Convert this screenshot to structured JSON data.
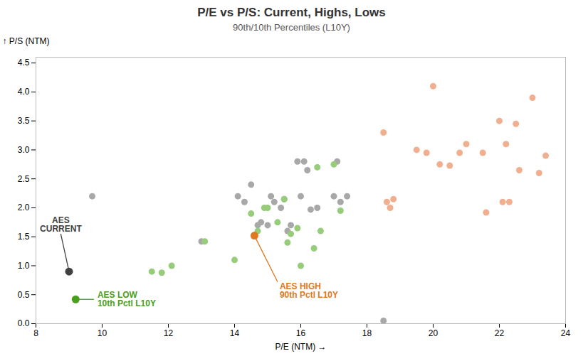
{
  "chart_data": {
    "type": "scatter",
    "title": "P/E vs P/S: Current, Highs, Lows",
    "subtitle": "90th/10th Percentiles (L10Y)",
    "xlabel": "P/E (NTM)",
    "ylabel": "P/S (NTM)",
    "xlim": [
      8,
      24
    ],
    "ylim": [
      0,
      4.6
    ],
    "xticks": [
      8,
      10,
      12,
      14,
      16,
      18,
      20,
      22,
      24
    ],
    "yticks": [
      {
        "value": 0,
        "label": "0.0"
      },
      0.5,
      {
        "value": 1,
        "label": "1.0"
      },
      1.5,
      {
        "value": 2,
        "label": "2.0"
      },
      2.5,
      {
        "value": 3,
        "label": "3.0"
      },
      3.5,
      {
        "value": 4,
        "label": "4.0"
      },
      4.5
    ],
    "grid": false,
    "series": [
      {
        "color": "#a8a8a8",
        "x": [
          9.7,
          13.0,
          14.1,
          14.3,
          14.5,
          14.6,
          14.7,
          14.8,
          15.0,
          15.1,
          15.2,
          15.4,
          15.5,
          15.6,
          15.7,
          15.9,
          16.0,
          16.1,
          16.2,
          16.3,
          16.5,
          17.0,
          17.1,
          17.2,
          17.4,
          18.5
        ],
        "values": [
          2.2,
          1.42,
          2.2,
          2.1,
          2.4,
          1.52,
          1.7,
          1.75,
          1.7,
          2.2,
          2.1,
          2.0,
          2.15,
          1.6,
          1.7,
          2.8,
          2.2,
          2.8,
          2.65,
          1.97,
          2.0,
          2.2,
          2.8,
          2.1,
          2.2,
          0.05
        ]
      },
      {
        "color": "#96cc7a",
        "x": [
          11.5,
          11.8,
          12.1,
          13.1,
          14.0,
          14.5,
          14.7,
          14.9,
          15.0,
          15.3,
          15.5,
          15.6,
          15.7,
          15.9,
          16.0,
          16.4,
          16.5,
          16.6,
          17.0,
          17.2
        ],
        "values": [
          0.9,
          0.88,
          1.0,
          1.42,
          1.1,
          1.9,
          1.6,
          2.0,
          2.0,
          1.75,
          2.15,
          1.4,
          1.55,
          1.65,
          1.0,
          1.3,
          2.7,
          1.6,
          2.75,
          1.95
        ]
      },
      {
        "color": "#f0b090",
        "x": [
          19.5,
          19.8,
          20.0,
          20.2,
          20.5,
          20.8,
          21.0,
          21.5,
          21.6,
          22.0,
          22.1,
          22.2,
          22.3,
          22.5,
          22.6,
          23.0,
          23.2,
          23.4,
          18.5,
          18.6,
          18.7,
          18.8
        ],
        "values": [
          3.0,
          2.95,
          4.1,
          2.75,
          2.73,
          2.95,
          3.1,
          2.95,
          1.92,
          3.5,
          2.1,
          3.1,
          2.1,
          3.45,
          2.65,
          3.9,
          2.6,
          2.9,
          3.3,
          2.1,
          2.0,
          2.15
        ]
      }
    ],
    "annotations": [
      {
        "text": [
          "AES",
          "CURRENT"
        ],
        "x": 9.0,
        "y": 0.9,
        "color": "#404040"
      },
      {
        "text": [
          "AES LOW",
          "10th Pctl L10Y"
        ],
        "x": 9.2,
        "y": 0.42,
        "color": "#4a9e20"
      },
      {
        "text": [
          "AES HIGH",
          "90th Pctl L10Y"
        ],
        "x": 14.6,
        "y": 1.52,
        "color": "#e07820"
      }
    ]
  }
}
